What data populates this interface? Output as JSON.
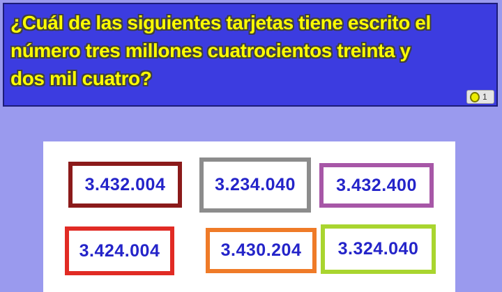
{
  "colors": {
    "page_background": "#9A9AEE",
    "header_background": "#3C3CE0",
    "header_border": "#1C1C78",
    "question_text": "#FFFF00",
    "panel_background": "#FFFFFF",
    "number_text": "#2424C9",
    "badge_background": "#E4E4E4",
    "badge_circle_fill": "#EDED00",
    "badge_circle_border": "#787800"
  },
  "header": {
    "question": "¿Cuál de las siguientes tarjetas tiene escrito el número tres millones cuatrocientos treinta y dos mil cuatro?",
    "question_lines": [
      "¿Cuál de las siguientes tarjetas tiene escrito el",
      "número tres millones cuatrocientos treinta y",
      "dos mil cuatro?"
    ]
  },
  "badge": {
    "icon": "point-circle-icon",
    "count": "1"
  },
  "cards": [
    {
      "value": "3.432.004",
      "border_color": "#8B1A1A"
    },
    {
      "value": "3.234.040",
      "border_color": "#8C8C8C"
    },
    {
      "value": "3.432.400",
      "border_color": "#A757A7"
    },
    {
      "value": "3.424.004",
      "border_color": "#E12B24"
    },
    {
      "value": "3.430.204",
      "border_color": "#EF7B28"
    },
    {
      "value": "3.324.040",
      "border_color": "#A9D52F"
    }
  ]
}
